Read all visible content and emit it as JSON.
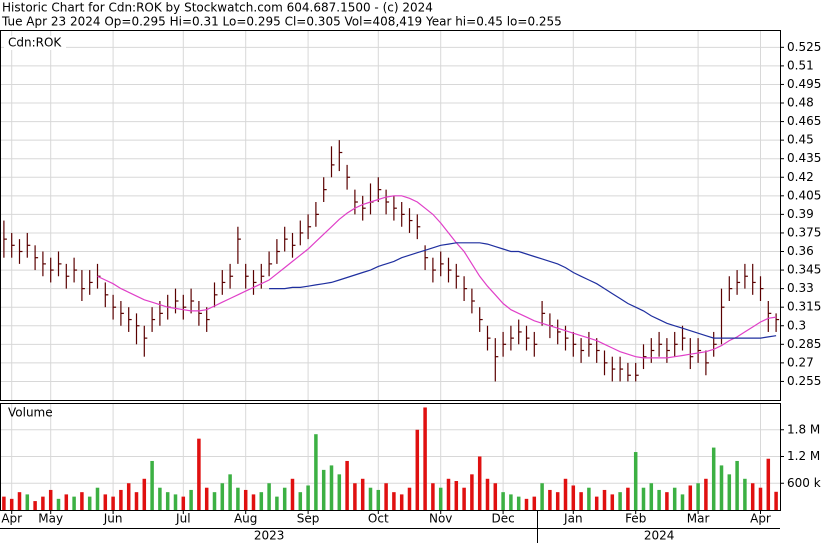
{
  "chart_data": {
    "type": "ohlc",
    "title": "Historic Chart for Cdn:ROK by Stockwatch.com 604.687.1500 - (c) 2024",
    "subtitle": "Tue Apr 23 2024  Op=0.295  Hi=0.31  Lo=0.295  Cl=0.305  Vol=408,419  Year hi=0.45  lo=0.255",
    "symbol_label": "Cdn:ROK",
    "volume_label": "Volume",
    "categories": [
      null,
      null,
      null,
      null,
      null,
      null,
      null,
      null,
      null,
      null,
      null,
      null,
      null,
      null,
      null,
      null,
      null,
      null,
      null,
      null,
      null,
      null,
      null,
      null,
      null,
      null,
      null,
      null,
      null,
      null,
      null,
      null,
      null,
      null,
      null,
      null,
      null,
      null,
      null,
      null,
      null,
      null,
      null,
      null,
      null,
      null,
      null,
      null,
      null,
      null,
      null,
      null,
      null,
      null,
      null,
      null,
      null,
      null,
      null,
      null,
      null,
      null,
      null,
      null,
      null,
      null,
      null,
      null,
      null,
      null,
      null,
      null,
      null,
      null,
      null,
      null,
      null,
      null,
      null,
      null,
      null,
      null,
      null,
      null,
      null,
      null,
      null,
      null,
      null,
      null,
      null,
      null,
      null,
      null,
      null,
      null,
      null,
      null,
      null,
      null
    ],
    "high": [
      0.385,
      0.375,
      0.37,
      0.375,
      0.365,
      0.36,
      0.355,
      0.36,
      0.35,
      0.355,
      0.345,
      0.345,
      0.35,
      0.335,
      0.325,
      0.32,
      0.315,
      0.31,
      0.3,
      0.315,
      0.32,
      0.325,
      0.33,
      0.325,
      0.33,
      0.32,
      0.315,
      0.335,
      0.345,
      0.35,
      0.38,
      0.35,
      0.345,
      0.35,
      0.36,
      0.37,
      0.38,
      0.375,
      0.385,
      0.39,
      0.4,
      0.42,
      0.445,
      0.45,
      0.43,
      0.41,
      0.405,
      0.415,
      0.42,
      0.41,
      0.405,
      0.4,
      0.395,
      0.39,
      0.365,
      0.355,
      0.36,
      0.355,
      0.35,
      0.34,
      0.33,
      0.315,
      0.3,
      0.29,
      0.295,
      0.3,
      0.305,
      0.3,
      0.295,
      0.32,
      0.31,
      0.305,
      0.3,
      0.295,
      0.29,
      0.295,
      0.29,
      0.28,
      0.275,
      0.275,
      0.27,
      0.27,
      0.285,
      0.29,
      0.295,
      0.29,
      0.295,
      0.3,
      0.29,
      0.29,
      0.28,
      0.295,
      0.33,
      0.34,
      0.345,
      0.35,
      0.35,
      0.34,
      0.32,
      0.31
    ],
    "low": [
      0.355,
      0.355,
      0.35,
      0.355,
      0.345,
      0.34,
      0.335,
      0.34,
      0.33,
      0.335,
      0.32,
      0.325,
      0.33,
      0.315,
      0.305,
      0.3,
      0.295,
      0.285,
      0.275,
      0.295,
      0.3,
      0.305,
      0.31,
      0.305,
      0.31,
      0.3,
      0.295,
      0.315,
      0.325,
      0.33,
      0.35,
      0.33,
      0.325,
      0.33,
      0.34,
      0.35,
      0.36,
      0.355,
      0.365,
      0.37,
      0.38,
      0.4,
      0.42,
      0.425,
      0.41,
      0.39,
      0.385,
      0.39,
      0.4,
      0.39,
      0.385,
      0.38,
      0.375,
      0.37,
      0.345,
      0.335,
      0.34,
      0.335,
      0.33,
      0.32,
      0.31,
      0.295,
      0.28,
      0.255,
      0.275,
      0.28,
      0.285,
      0.28,
      0.275,
      0.3,
      0.29,
      0.285,
      0.28,
      0.275,
      0.27,
      0.275,
      0.27,
      0.26,
      0.255,
      0.255,
      0.255,
      0.255,
      0.265,
      0.27,
      0.275,
      0.27,
      0.275,
      0.28,
      0.265,
      0.27,
      0.26,
      0.275,
      0.285,
      0.32,
      0.325,
      0.33,
      0.325,
      0.32,
      0.295,
      0.295
    ],
    "close": [
      0.37,
      0.365,
      0.36,
      0.365,
      0.355,
      0.35,
      0.345,
      0.35,
      0.34,
      0.345,
      0.33,
      0.335,
      0.34,
      0.325,
      0.315,
      0.31,
      0.305,
      0.3,
      0.29,
      0.305,
      0.31,
      0.315,
      0.32,
      0.315,
      0.32,
      0.31,
      0.305,
      0.325,
      0.335,
      0.34,
      0.37,
      0.34,
      0.335,
      0.34,
      0.35,
      0.36,
      0.37,
      0.365,
      0.375,
      0.38,
      0.39,
      0.41,
      0.43,
      0.44,
      0.42,
      0.4,
      0.395,
      0.4,
      0.41,
      0.4,
      0.395,
      0.39,
      0.385,
      0.38,
      0.355,
      0.345,
      0.35,
      0.345,
      0.34,
      0.33,
      0.32,
      0.305,
      0.29,
      0.275,
      0.285,
      0.29,
      0.295,
      0.29,
      0.285,
      0.31,
      0.3,
      0.295,
      0.29,
      0.285,
      0.28,
      0.285,
      0.28,
      0.27,
      0.265,
      0.265,
      0.26,
      0.26,
      0.275,
      0.28,
      0.285,
      0.28,
      0.285,
      0.29,
      0.275,
      0.28,
      0.27,
      0.285,
      0.315,
      0.33,
      0.335,
      0.34,
      0.335,
      0.33,
      0.31,
      0.305
    ],
    "bar_color": "#5a0000",
    "ma_series": [
      {
        "color": "#e040c8",
        "values": [
          null,
          null,
          null,
          null,
          null,
          null,
          null,
          null,
          null,
          null,
          null,
          null,
          0.34,
          0.337,
          0.334,
          0.33,
          0.327,
          0.324,
          0.321,
          0.319,
          0.317,
          0.315,
          0.314,
          0.313,
          0.312,
          0.312,
          0.313,
          0.316,
          0.319,
          0.322,
          0.325,
          0.328,
          0.331,
          0.334,
          0.337,
          0.342,
          0.347,
          0.352,
          0.357,
          0.362,
          0.368,
          0.374,
          0.38,
          0.386,
          0.391,
          0.395,
          0.398,
          0.4,
          0.402,
          0.404,
          0.405,
          0.405,
          0.403,
          0.4,
          0.395,
          0.39,
          0.383,
          0.375,
          0.367,
          0.36,
          0.35,
          0.34,
          0.332,
          0.325,
          0.318,
          0.313,
          0.31,
          0.307,
          0.304,
          0.302,
          0.3,
          0.298,
          0.296,
          0.294,
          0.292,
          0.29,
          0.288,
          0.285,
          0.282,
          0.279,
          0.277,
          0.275,
          0.274,
          0.274,
          0.274,
          0.274,
          0.275,
          0.276,
          0.277,
          0.278,
          0.279,
          0.281,
          0.284,
          0.288,
          0.291,
          0.295,
          0.299,
          0.303,
          0.306,
          0.307
        ]
      },
      {
        "color": "#1f2f9f",
        "values": [
          null,
          null,
          null,
          null,
          null,
          null,
          null,
          null,
          null,
          null,
          null,
          null,
          null,
          null,
          null,
          null,
          null,
          null,
          null,
          null,
          null,
          null,
          null,
          null,
          null,
          null,
          null,
          null,
          null,
          null,
          null,
          null,
          null,
          null,
          0.33,
          0.33,
          0.33,
          0.331,
          0.331,
          0.332,
          0.333,
          0.334,
          0.335,
          0.337,
          0.339,
          0.341,
          0.343,
          0.345,
          0.348,
          0.35,
          0.352,
          0.355,
          0.357,
          0.359,
          0.361,
          0.363,
          0.365,
          0.366,
          0.367,
          0.367,
          0.367,
          0.367,
          0.366,
          0.364,
          0.362,
          0.36,
          0.36,
          0.358,
          0.356,
          0.354,
          0.352,
          0.35,
          0.347,
          0.343,
          0.34,
          0.337,
          0.334,
          0.33,
          0.326,
          0.322,
          0.318,
          0.315,
          0.312,
          0.308,
          0.305,
          0.302,
          0.3,
          0.298,
          0.296,
          0.294,
          0.292,
          0.29,
          0.29,
          0.29,
          0.29,
          0.29,
          0.29,
          0.29,
          0.291,
          0.292
        ]
      }
    ],
    "volume": [
      300000,
      250000,
      400000,
      350000,
      200000,
      300000,
      450000,
      250000,
      350000,
      300000,
      400000,
      300000,
      500000,
      350000,
      300000,
      450000,
      600000,
      400000,
      700000,
      1100000,
      500000,
      400000,
      350000,
      300000,
      450000,
      1600000,
      500000,
      400000,
      600000,
      800000,
      500000,
      450000,
      350000,
      400000,
      600000,
      300000,
      500000,
      700000,
      400000,
      550000,
      1700000,
      900000,
      1000000,
      800000,
      1100000,
      600000,
      700000,
      500000,
      450000,
      600000,
      400000,
      350000,
      500000,
      1800000,
      2300000,
      600000,
      500000,
      700000,
      650000,
      500000,
      800000,
      1200000,
      700000,
      600000,
      400000,
      350000,
      300000,
      250000,
      300000,
      600000,
      450000,
      400000,
      700000,
      550000,
      400000,
      500000,
      300000,
      450000,
      350000,
      400000,
      500000,
      1300000,
      500000,
      600000,
      450000,
      400000,
      500000,
      350000,
      550000,
      600000,
      700000,
      1400000,
      1000000,
      800000,
      1100000,
      700000,
      600000,
      500000,
      1150000,
      408419
    ],
    "up_color": "#3cb043",
    "down_color": "#e01010",
    "ylim": [
      0.24,
      0.539
    ],
    "yticks": [
      0.255,
      0.27,
      0.285,
      0.3,
      0.315,
      0.33,
      0.345,
      0.36,
      0.375,
      0.39,
      0.405,
      0.42,
      0.435,
      0.45,
      0.465,
      0.48,
      0.495,
      0.51,
      0.525
    ],
    "vlim": [
      0,
      2400000
    ],
    "vticks": [
      {
        "value": 600000,
        "label": "600 k"
      },
      {
        "value": 1200000,
        "label": "1.2 M"
      },
      {
        "value": 1800000,
        "label": "1.8 M"
      }
    ],
    "xticks": [
      {
        "value": 1,
        "label": "Apr"
      },
      {
        "value": 6,
        "label": "May"
      },
      {
        "value": 14,
        "label": "Jun"
      },
      {
        "value": 23,
        "label": "Jul"
      },
      {
        "value": 31,
        "label": "Aug"
      },
      {
        "value": 39,
        "label": "Sep"
      },
      {
        "value": 48,
        "label": "Oct"
      },
      {
        "value": 56,
        "label": "Nov"
      },
      {
        "value": 64,
        "label": "Dec"
      },
      {
        "value": 73,
        "label": "Jan"
      },
      {
        "value": 81,
        "label": "Feb"
      },
      {
        "value": 89,
        "label": "Mar"
      },
      {
        "value": 97,
        "label": "Apr"
      }
    ],
    "years": [
      {
        "value": 34,
        "label": "2023"
      },
      {
        "value": 84,
        "label": "2024"
      }
    ],
    "grid": true
  }
}
